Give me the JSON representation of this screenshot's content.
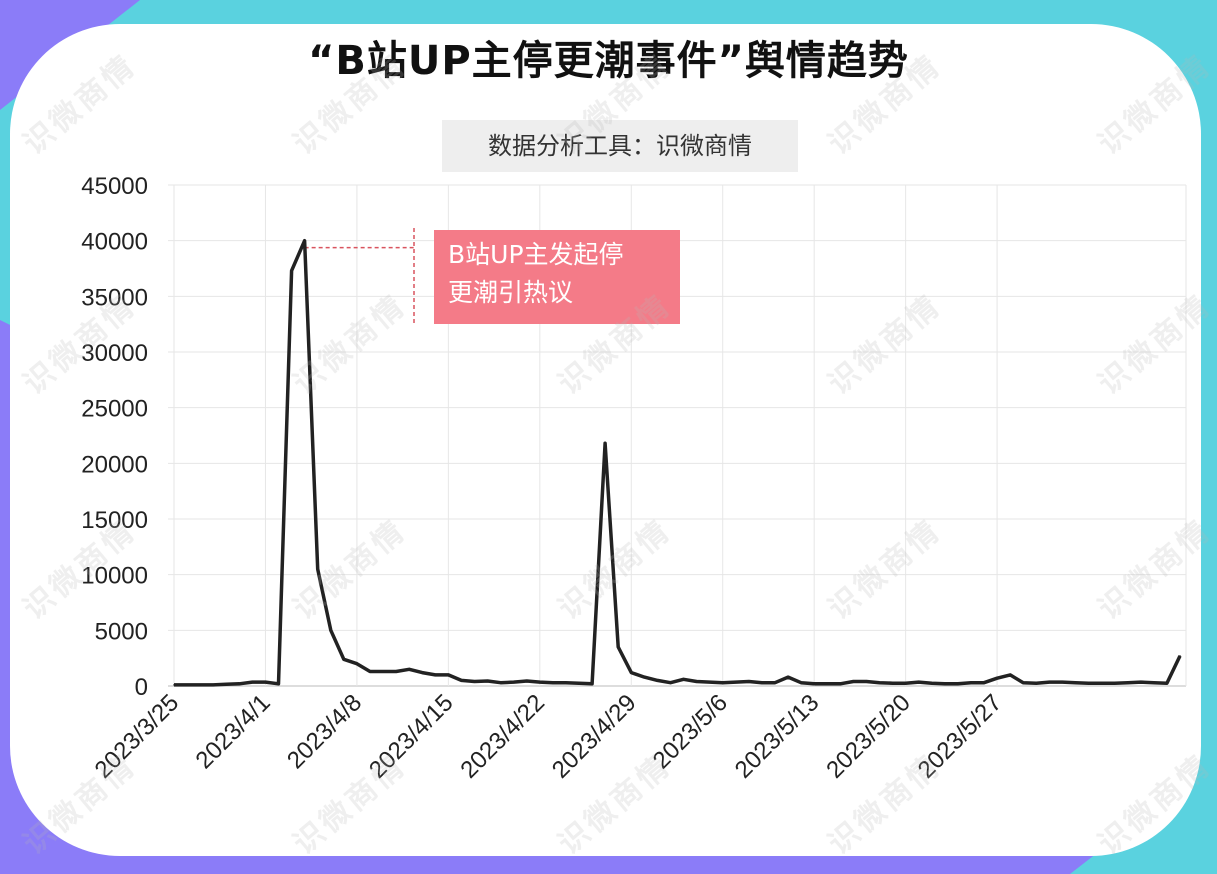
{
  "title": "“B站UP主停更潮事件”舆情趋势",
  "source_label": "数据分析工具：识微商情",
  "watermark_text": "识微商情",
  "colors": {
    "background_teal": "#5ad2df",
    "background_purple": "#8b7cf8",
    "line": "#222222",
    "annotation_fill": "#f47b88",
    "annotation_guide": "#d9535e"
  },
  "annotation": {
    "lines": [
      "B站UP主发起停",
      "更潮引热议"
    ]
  },
  "chart_data": {
    "type": "line",
    "title": "“B站UP主停更潮事件”舆情趋势",
    "xlabel": "",
    "ylabel": "",
    "ylim": [
      0,
      45000
    ],
    "yticks": [
      "45000",
      "40000",
      "35000",
      "30000",
      "25000",
      "20000",
      "15000",
      "10000",
      "5000",
      "0"
    ],
    "xtick_labels": [
      "2023/3/25",
      "2023/4/1",
      "2023/4/8",
      "2023/4/15",
      "2023/4/22",
      "2023/4/29",
      "2023/5/6",
      "2023/5/13",
      "2023/5/20",
      "2023/5/27"
    ],
    "grid": true,
    "x_start": "2023/3/25",
    "values": [
      100,
      100,
      100,
      100,
      150,
      200,
      350,
      350,
      200,
      37300,
      40000,
      10500,
      5000,
      2400,
      2000,
      1300,
      1300,
      1300,
      1500,
      1200,
      1000,
      1000,
      500,
      400,
      450,
      300,
      350,
      450,
      350,
      300,
      300,
      250,
      200,
      21800,
      3500,
      1200,
      800,
      500,
      300,
      600,
      400,
      350,
      300,
      350,
      400,
      300,
      300,
      800,
      300,
      200,
      200,
      200,
      400,
      400,
      300,
      250,
      250,
      350,
      250,
      200,
      200,
      300,
      300,
      700,
      1000,
      300,
      250,
      350,
      350,
      300,
      250,
      250,
      250,
      300,
      350,
      300,
      250,
      2700
    ]
  }
}
